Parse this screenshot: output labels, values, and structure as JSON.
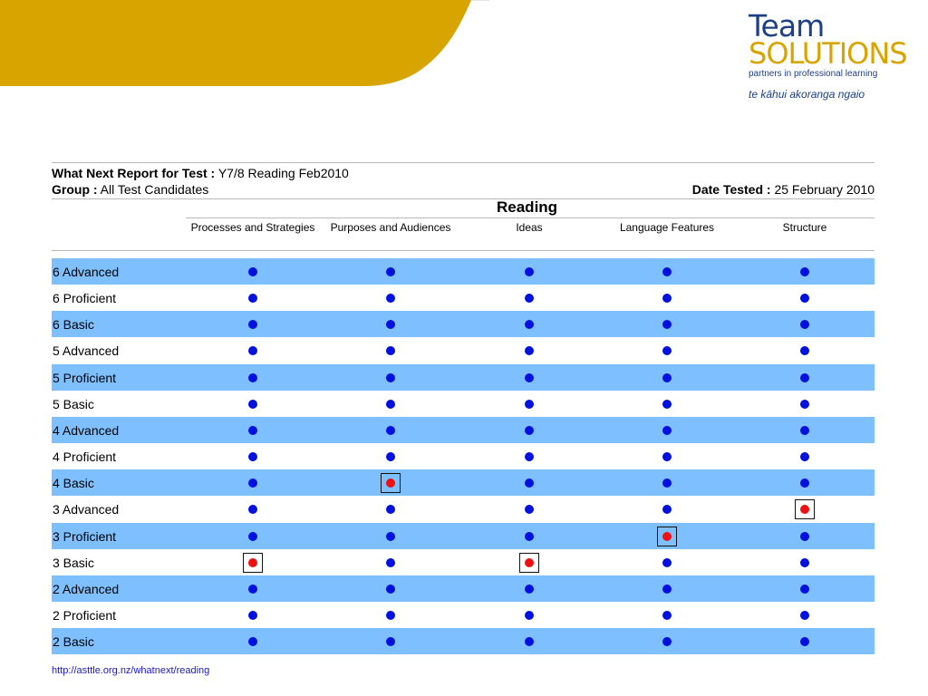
{
  "brand": {
    "line1": "Team",
    "line2": "SOLUTIONS",
    "tagline": "partners in professional learning",
    "maori": "te kāhui akoranga ngaio",
    "colors": {
      "gold": "#d8a500",
      "navy": "#1c3f86"
    }
  },
  "report": {
    "title_label": "What Next Report for Test :",
    "title_value": "Y7/8 Reading Feb2010",
    "group_label": "Group :",
    "group_value": "All Test Candidates",
    "date_label": "Date Tested :",
    "date_value": "25 February 2010",
    "subject": "Reading"
  },
  "columns": [
    "Processes and Strategies",
    "Purposes and Audiences",
    "Ideas",
    "Language Features",
    "Structure"
  ],
  "rows": [
    {
      "label": "6 Advanced",
      "marked": []
    },
    {
      "label": "6 Proficient",
      "marked": []
    },
    {
      "label": "6 Basic",
      "marked": []
    },
    {
      "label": "5 Advanced",
      "marked": []
    },
    {
      "label": "5 Proficient",
      "marked": []
    },
    {
      "label": "5 Basic",
      "marked": []
    },
    {
      "label": "4 Advanced",
      "marked": []
    },
    {
      "label": "4 Proficient",
      "marked": []
    },
    {
      "label": "4 Basic",
      "marked": [
        1
      ]
    },
    {
      "label": "3 Advanced",
      "marked": [
        4
      ]
    },
    {
      "label": "3 Proficient",
      "marked": [
        3
      ]
    },
    {
      "label": "3 Basic",
      "marked": [
        0,
        2
      ]
    },
    {
      "label": "2 Advanced",
      "marked": []
    },
    {
      "label": "2 Proficient",
      "marked": []
    },
    {
      "label": "2 Basic",
      "marked": []
    }
  ],
  "colors": {
    "shaded_row": "#7dbfff",
    "dot": "#0011dd",
    "marked_dot": "#ee1111"
  },
  "footer": {
    "url": "http://asttle.org.nz/whatnext/reading"
  }
}
